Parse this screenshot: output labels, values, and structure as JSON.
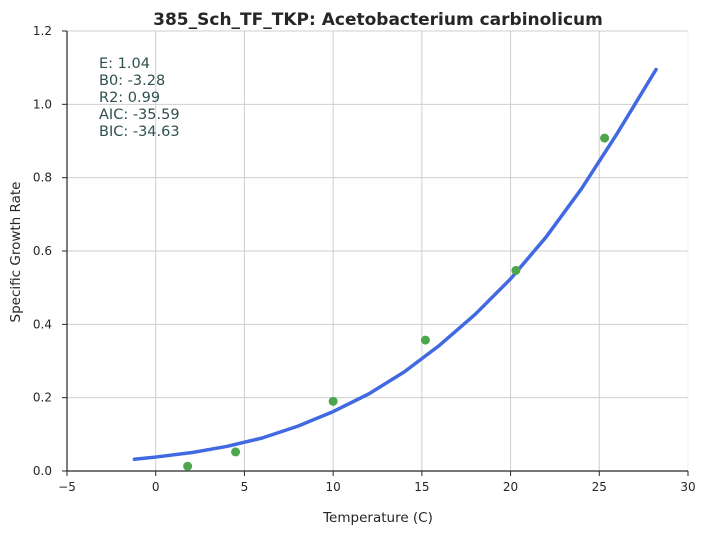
{
  "chart_data": {
    "type": "scatter",
    "title": "385_Sch_TF_TKP: Acetobacterium carbinolicum",
    "xlabel": "Temperature (C)",
    "ylabel": "Specific Growth Rate",
    "xlim": [
      -5,
      30
    ],
    "ylim": [
      0,
      1.2
    ],
    "xticks": [
      -5,
      0,
      5,
      10,
      15,
      20,
      25,
      30
    ],
    "yticks": [
      0.0,
      0.2,
      0.4,
      0.6,
      0.8,
      1.0,
      1.2
    ],
    "xtick_labels": [
      "−5",
      "0",
      "5",
      "10",
      "15",
      "20",
      "25",
      "30"
    ],
    "ytick_labels": [
      "0.0",
      "0.2",
      "0.4",
      "0.6",
      "0.8",
      "1.0",
      "1.2"
    ],
    "grid": true,
    "series": [
      {
        "type": "scatter",
        "color": "#4DA64D",
        "x": [
          1.8,
          4.5,
          10.0,
          15.2,
          20.3,
          25.3
        ],
        "y": [
          0.013,
          0.052,
          0.19,
          0.357,
          0.547,
          0.908
        ]
      },
      {
        "type": "line",
        "color": "#4169E1",
        "x": [
          -1.2,
          0,
          2,
          4,
          6,
          8,
          10,
          12,
          14,
          16,
          18,
          20,
          22,
          24,
          26,
          28.2
        ],
        "y": [
          0.032,
          0.038,
          0.05,
          0.067,
          0.09,
          0.122,
          0.162,
          0.21,
          0.27,
          0.343,
          0.427,
          0.524,
          0.638,
          0.77,
          0.92,
          1.095
        ]
      }
    ],
    "annotations": [
      "E:  1.04",
      "B0:  -3.28",
      "R2:  0.99",
      "AIC: -35.59",
      "BIC: -34.63"
    ]
  }
}
